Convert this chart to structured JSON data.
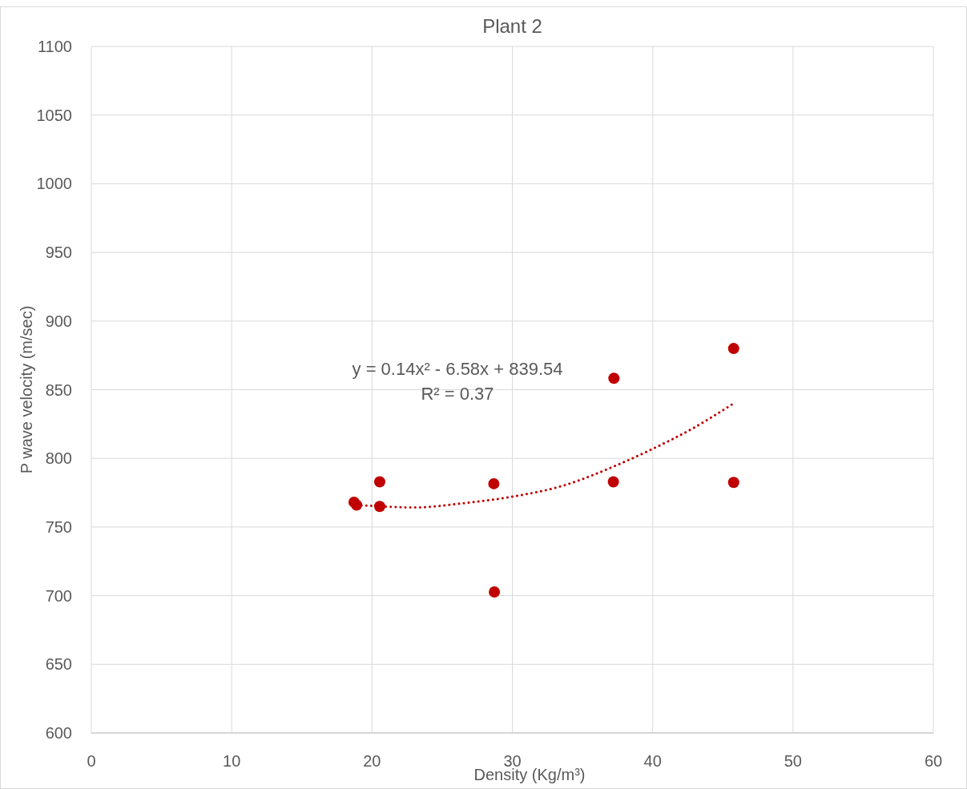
{
  "chart_data": {
    "type": "scatter",
    "title": "Plant 2",
    "xlabel": "Density (Kg/m³)",
    "ylabel": "P wave velocity (m/sec)",
    "xlim": [
      0,
      60
    ],
    "xticks": [
      0,
      10,
      20,
      30,
      40,
      50,
      60
    ],
    "ylim": [
      600,
      1100
    ],
    "yticks": [
      600,
      650,
      700,
      750,
      800,
      850,
      900,
      950,
      1000,
      1050,
      1100
    ],
    "grid": true,
    "marker": "circle",
    "annotations": [
      "y = 0.14x² - 6.58x + 839.54",
      "R² = 0.37"
    ],
    "series": [
      {
        "color": "#c00000",
        "x": [
          18.72,
          18.9,
          20.55,
          20.55,
          28.68,
          28.72,
          37.24,
          37.2,
          45.77,
          45.77
        ],
        "values": [
          768.1,
          766,
          782.9,
          765,
          781.5,
          702.7,
          858.3,
          782.9,
          880,
          782.5
        ]
      },
      {
        "type": "line",
        "color": "#c00000",
        "line_style": "dotted",
        "marker": "none",
        "x": [
          18.9,
          19.6,
          23,
          26.5,
          30,
          33.65,
          37.3,
          40,
          42.8,
          45.8
        ],
        "values": [
          766,
          765.6,
          764.2,
          767.3,
          772.1,
          780.2,
          794.4,
          806.9,
          821.5,
          840.2
        ]
      }
    ]
  }
}
